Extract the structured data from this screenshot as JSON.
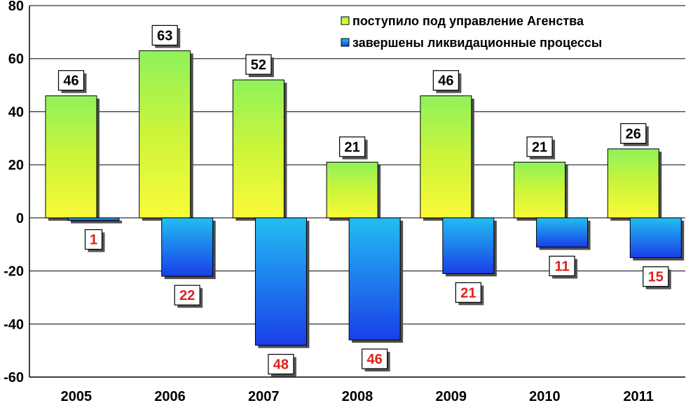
{
  "chart_data": {
    "type": "bar",
    "title": "",
    "xlabel": "",
    "ylabel": "",
    "ylim": [
      -60,
      80
    ],
    "yticks": [
      80,
      60,
      40,
      20,
      0,
      -20,
      -40,
      -60
    ],
    "grid": true,
    "legend_position": "top-right",
    "categories": [
      "2005",
      "2006",
      "2007",
      "2008",
      "2009",
      "2010",
      "2011"
    ],
    "series": [
      {
        "name": "поступило под управление Агенства",
        "values": [
          46,
          63,
          52,
          21,
          46,
          21,
          26
        ],
        "labels": [
          "46",
          "63",
          "52",
          "21",
          "46",
          "21",
          "26"
        ],
        "color": "#ccf24a",
        "label_color": "#000000"
      },
      {
        "name": "завершены ликвидационные процессы",
        "values": [
          -1,
          -22,
          -48,
          -46,
          -21,
          -11,
          -15
        ],
        "labels": [
          "1",
          "22",
          "48",
          "46",
          "21",
          "11",
          "15"
        ],
        "color": "#1e7fe6",
        "label_color": "#e0201b"
      }
    ]
  }
}
